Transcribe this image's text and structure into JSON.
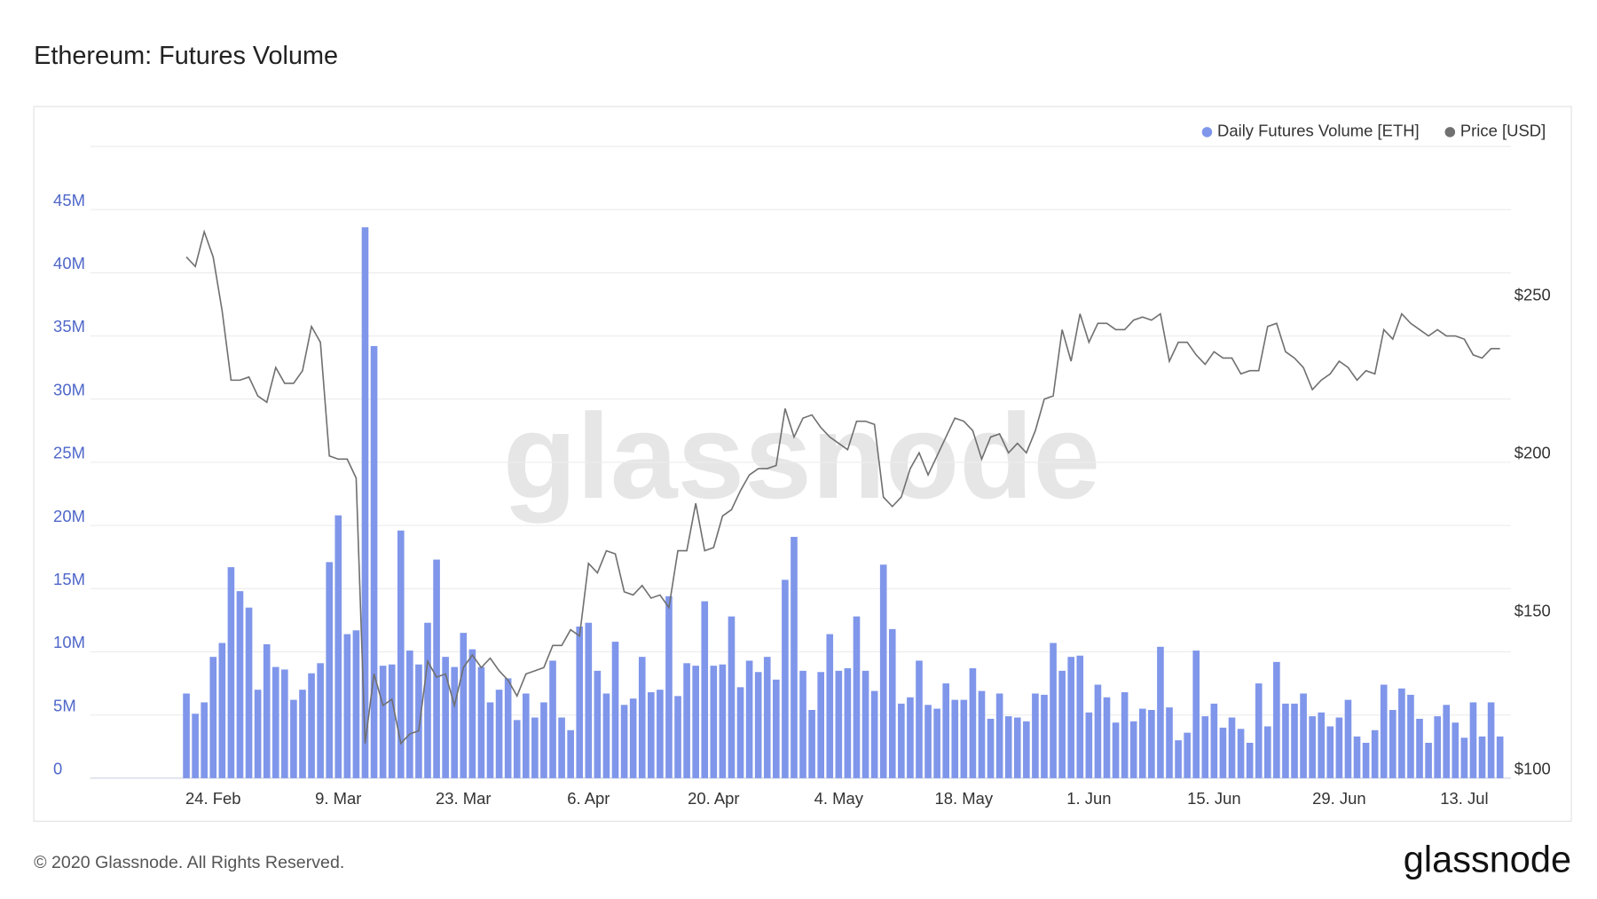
{
  "chart_data": {
    "type": "bar-line",
    "title": "Ethereum: Futures Volume",
    "watermark": "glassnode",
    "footer": "© 2020 Glassnode. All Rights Reserved.",
    "logo": "glassnode",
    "categories": [
      null,
      null,
      null,
      "24. Feb",
      null,
      null,
      null,
      null,
      null,
      null,
      null,
      null,
      null,
      null,
      null,
      null,
      null,
      "9. Mar",
      null,
      null,
      null,
      null,
      null,
      null,
      null,
      null,
      null,
      null,
      null,
      null,
      null,
      "23. Mar",
      null,
      null,
      null,
      null,
      null,
      null,
      null,
      null,
      null,
      null,
      null,
      null,
      null,
      "6. Apr",
      null,
      null,
      null,
      null,
      null,
      null,
      null,
      null,
      null,
      null,
      null,
      null,
      null,
      "20. Apr",
      null,
      null,
      null,
      null,
      null,
      null,
      null,
      null,
      null,
      null,
      null,
      null,
      null,
      "4. May",
      null,
      null,
      null,
      null,
      null,
      null,
      null,
      null,
      null,
      null,
      null,
      null,
      null,
      "18. May",
      null,
      null,
      null,
      null,
      null,
      null,
      null,
      null,
      null,
      null,
      null,
      null,
      null,
      "1. Jun",
      null,
      null,
      null,
      null,
      null,
      null,
      null,
      null,
      null,
      null,
      null,
      null,
      null,
      "15. Jun",
      null,
      null,
      null,
      null,
      null,
      null,
      null,
      null,
      null,
      null,
      null,
      null,
      null,
      "29. Jun",
      null,
      null,
      null,
      null,
      null,
      null,
      null,
      null,
      null,
      null,
      null,
      null,
      null,
      "13. Jul",
      null,
      null,
      null,
      null
    ],
    "series": [
      {
        "name": "Daily Futures Volume [ETH]",
        "color": "#7f96ea",
        "values": [
          6700000,
          5100000,
          6000000,
          9600000,
          10700000,
          16700000,
          14800000,
          13500000,
          7000000,
          10600000,
          8800000,
          8600000,
          6200000,
          7000000,
          8300000,
          9100000,
          17100000,
          20800000,
          11400000,
          11700000,
          43600000,
          34200000,
          8900000,
          9000000,
          19600000,
          10100000,
          9000000,
          12300000,
          17300000,
          9600000,
          8800000,
          11500000,
          10200000,
          8800000,
          6000000,
          7000000,
          7900000,
          4600000,
          6700000,
          4800000,
          6000000,
          9300000,
          4800000,
          3800000,
          12000000,
          12300000,
          8500000,
          6700000,
          10800000,
          5800000,
          6300000,
          9600000,
          6800000,
          7000000,
          14400000,
          6500000,
          9100000,
          8900000,
          14000000,
          8900000,
          9000000,
          12800000,
          7200000,
          9300000,
          8400000,
          9600000,
          7800000,
          15700000,
          19100000,
          8500000,
          5400000,
          8400000,
          11400000,
          8500000,
          8700000,
          12800000,
          8500000,
          6900000,
          16900000,
          11800000,
          5900000,
          6400000,
          9300000,
          5800000,
          5500000,
          7500000,
          6200000,
          6200000,
          8700000,
          6900000,
          4700000,
          6700000,
          4900000,
          4800000,
          4500000,
          6700000,
          6600000,
          10700000,
          8500000,
          9600000,
          9700000,
          5200000,
          7400000,
          6400000,
          4400000,
          6800000,
          4500000,
          5500000,
          5400000,
          10400000,
          5600000,
          3000000,
          3600000,
          10100000,
          4900000,
          5900000,
          4000000,
          4800000,
          3900000,
          2800000,
          7500000,
          4100000,
          9200000,
          5900000,
          5900000,
          6700000,
          4900000,
          5200000,
          4100000,
          4800000,
          6200000,
          3300000,
          2800000,
          3800000,
          7400000,
          5400000,
          7100000,
          6600000,
          4700000,
          2800000,
          4900000,
          5800000,
          4400000,
          3200000,
          6000000,
          3300000,
          6000000,
          3300000
        ]
      },
      {
        "name": "Price [USD]",
        "color": "#707070",
        "axis": "y2",
        "values": [
          265,
          262,
          273,
          265,
          248,
          226,
          226,
          227,
          221,
          219,
          230,
          225,
          225,
          229,
          243,
          238,
          202,
          201,
          201,
          195,
          111,
          133,
          123,
          125,
          111,
          114,
          115,
          137,
          132,
          133,
          123,
          135,
          139,
          135,
          138,
          134,
          131,
          126,
          133,
          134,
          135,
          142,
          142,
          147,
          145,
          168,
          165,
          172,
          171,
          159,
          158,
          161,
          157,
          158,
          154,
          172,
          172,
          187,
          172,
          173,
          183,
          185,
          191,
          196,
          198,
          198,
          199,
          217,
          208,
          214,
          215,
          211,
          208,
          206,
          204,
          213,
          213,
          212,
          189,
          186,
          189,
          198,
          203,
          196,
          202,
          208,
          214,
          213,
          210,
          201,
          208,
          209,
          203,
          206,
          203,
          210,
          220,
          221,
          242,
          232,
          247,
          238,
          244,
          244,
          242,
          242,
          245,
          246,
          245,
          247,
          232,
          238,
          238,
          234,
          231,
          235,
          233,
          233,
          228,
          229,
          229,
          243,
          244,
          235,
          233,
          230,
          223,
          226,
          228,
          232,
          230,
          226,
          229,
          228,
          242,
          239,
          247,
          244,
          242,
          240,
          242,
          240,
          240,
          239,
          234,
          233,
          236,
          236
        ]
      }
    ],
    "ylim": [
      0,
      50000000
    ],
    "yticks": [
      {
        "value": 0,
        "label": "0"
      },
      {
        "value": 5000000,
        "label": "5M"
      },
      {
        "value": 10000000,
        "label": "10M"
      },
      {
        "value": 15000000,
        "label": "15M"
      },
      {
        "value": 20000000,
        "label": "20M"
      },
      {
        "value": 25000000,
        "label": "25M"
      },
      {
        "value": 30000000,
        "label": "30M"
      },
      {
        "value": 35000000,
        "label": "35M"
      },
      {
        "value": 40000000,
        "label": "40M"
      },
      {
        "value": 45000000,
        "label": "45M"
      }
    ],
    "y2lim": [
      100,
      300
    ],
    "y2ticks": [
      {
        "value": 100,
        "label": "$100"
      },
      {
        "value": 150,
        "label": "$150"
      },
      {
        "value": 200,
        "label": "$200"
      },
      {
        "value": 250,
        "label": "$250"
      }
    ],
    "grid": true,
    "legend": "top-right"
  }
}
